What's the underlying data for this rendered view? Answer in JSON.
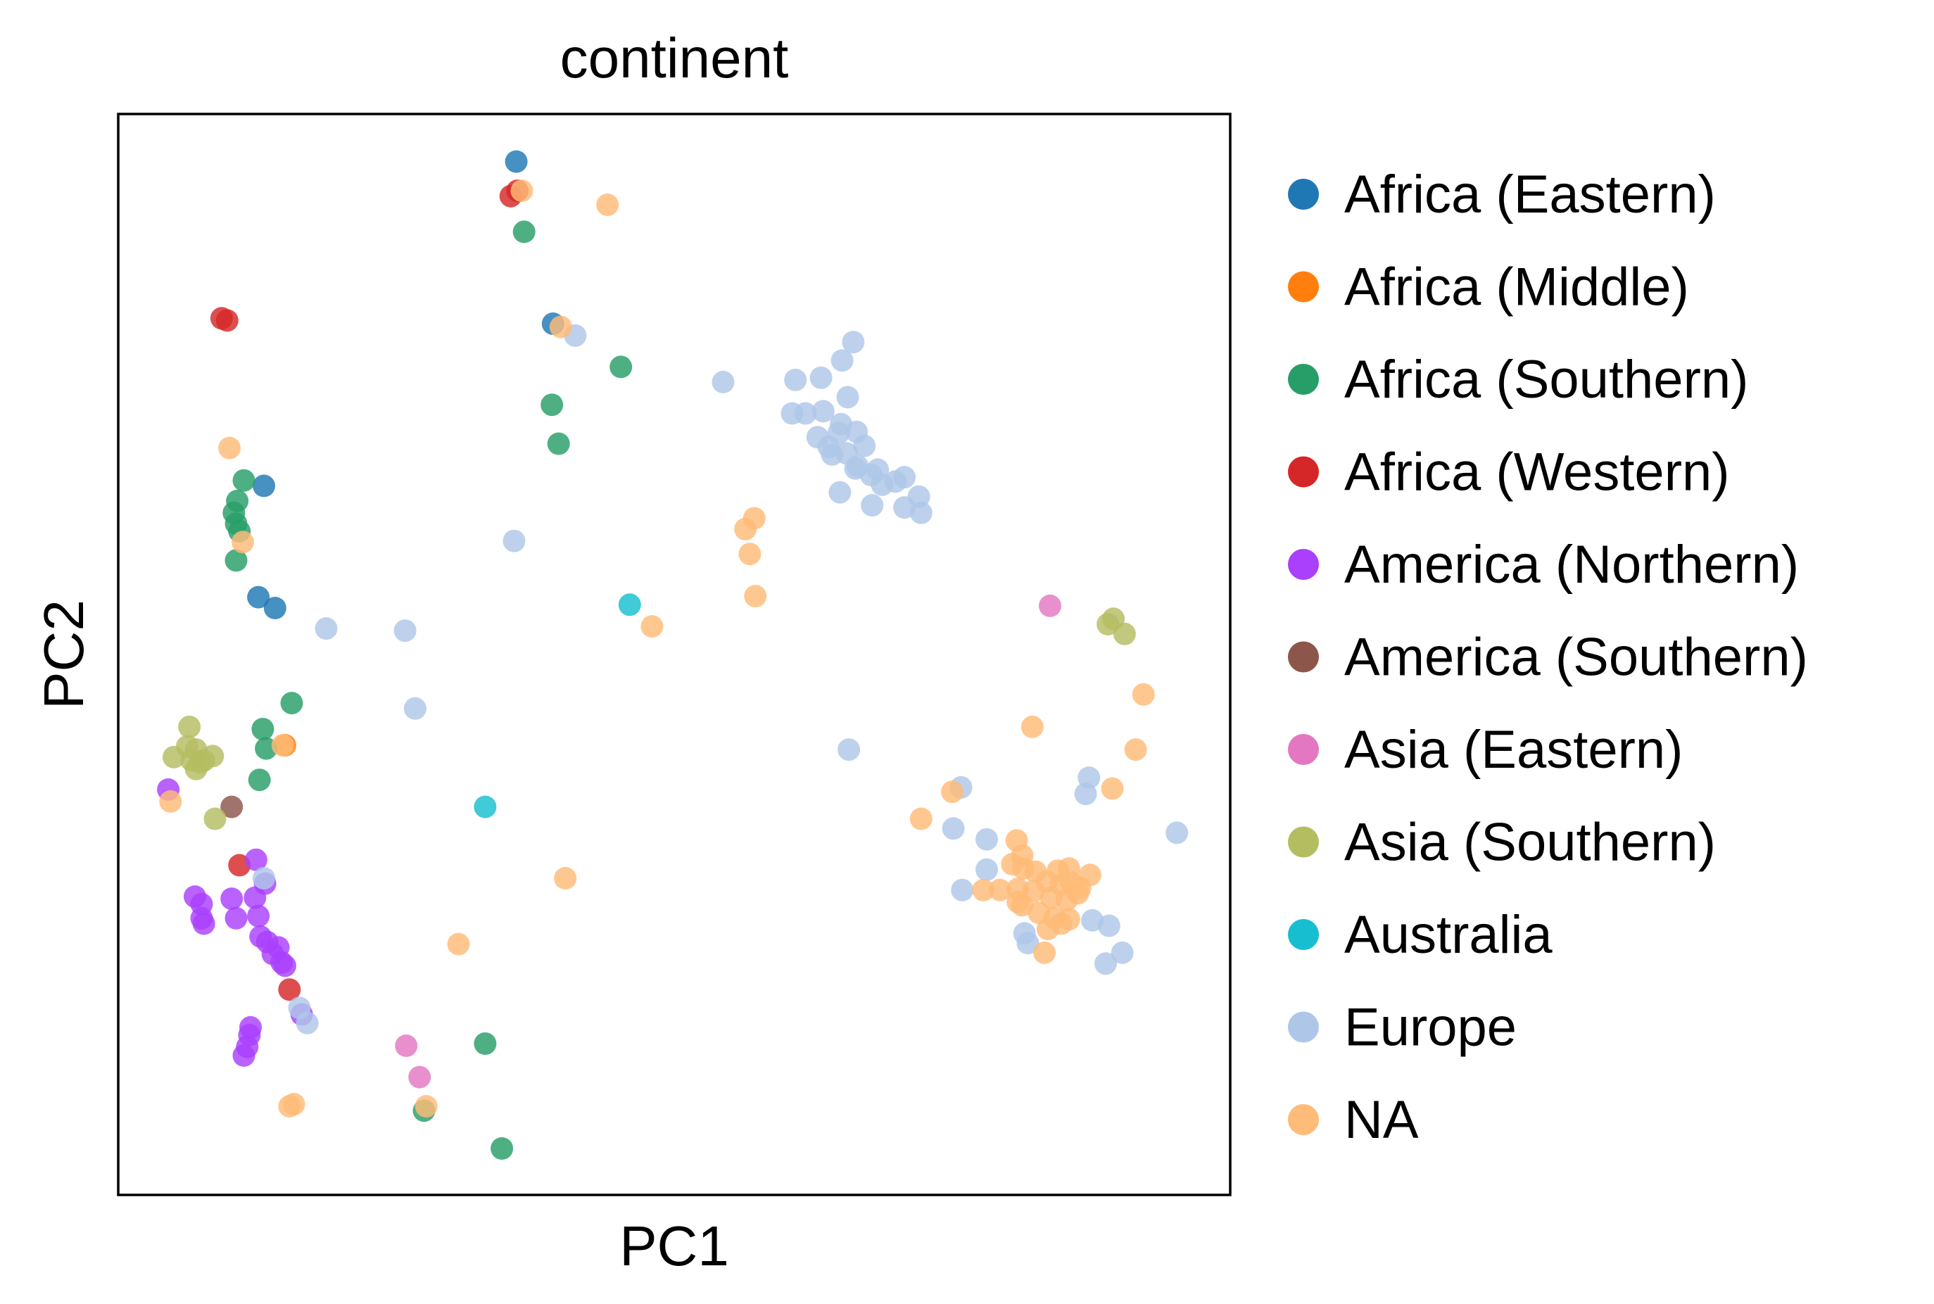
{
  "chart_data": {
    "type": "scatter",
    "title": "continent",
    "xlabel": "PC1",
    "ylabel": "PC2",
    "xlim": [
      0,
      100
    ],
    "ylim": [
      0,
      100
    ],
    "ticks": "none",
    "grid": false,
    "legend_position": "right",
    "series": [
      {
        "name": "Africa (Eastern)",
        "color": "#1f77b4",
        "points": [
          [
            35.8,
            95.6
          ],
          [
            39.1,
            80.6
          ],
          [
            13.1,
            65.6
          ],
          [
            12.6,
            55.3
          ],
          [
            14.1,
            54.3
          ]
        ]
      },
      {
        "name": "Africa (Middle)",
        "color": "#ff7f0e",
        "points": [
          [
            15.0,
            41.6
          ]
        ]
      },
      {
        "name": "Africa (Southern)",
        "color": "#279e68",
        "points": [
          [
            36.5,
            89.1
          ],
          [
            45.2,
            76.6
          ],
          [
            39.0,
            73.1
          ],
          [
            39.6,
            69.5
          ],
          [
            11.3,
            66.1
          ],
          [
            10.7,
            64.2
          ],
          [
            10.4,
            63.1
          ],
          [
            10.6,
            62.1
          ],
          [
            10.9,
            61.4
          ],
          [
            10.6,
            58.7
          ],
          [
            15.6,
            45.5
          ],
          [
            13.0,
            43.1
          ],
          [
            13.3,
            41.3
          ],
          [
            12.7,
            38.4
          ],
          [
            33.0,
            14.0
          ],
          [
            27.5,
            7.8
          ],
          [
            34.5,
            4.3
          ]
        ]
      },
      {
        "name": "Africa (Western)",
        "color": "#d62728",
        "points": [
          [
            35.9,
            92.9
          ],
          [
            35.3,
            92.4
          ],
          [
            9.3,
            81.1
          ],
          [
            9.8,
            80.9
          ],
          [
            10.9,
            30.5
          ],
          [
            15.4,
            19.0
          ]
        ]
      },
      {
        "name": "America (Northern)",
        "color": "#aa40fc",
        "points": [
          [
            4.5,
            37.5
          ],
          [
            6.9,
            27.6
          ],
          [
            7.5,
            26.9
          ],
          [
            7.5,
            25.6
          ],
          [
            7.7,
            25.1
          ],
          [
            10.2,
            27.4
          ],
          [
            10.6,
            25.6
          ],
          [
            12.3,
            27.5
          ],
          [
            12.6,
            25.8
          ],
          [
            12.8,
            23.9
          ],
          [
            13.4,
            23.4
          ],
          [
            14.4,
            22.9
          ],
          [
            13.9,
            22.3
          ],
          [
            14.7,
            21.5
          ],
          [
            15.0,
            21.2
          ],
          [
            13.2,
            28.8
          ],
          [
            12.4,
            31.0
          ],
          [
            16.5,
            16.7
          ],
          [
            11.9,
            15.5
          ],
          [
            11.8,
            14.8
          ],
          [
            11.6,
            13.7
          ],
          [
            11.3,
            12.9
          ]
        ]
      },
      {
        "name": "America (Southern)",
        "color": "#8c564b",
        "points": [
          [
            10.2,
            35.9
          ]
        ]
      },
      {
        "name": "Asia (Eastern)",
        "color": "#e377c2",
        "points": [
          [
            83.8,
            54.5
          ],
          [
            25.9,
            13.8
          ],
          [
            27.1,
            10.9
          ]
        ]
      },
      {
        "name": "Asia (Southern)",
        "color": "#b5bd61",
        "points": [
          [
            89.5,
            53.3
          ],
          [
            89.0,
            52.8
          ],
          [
            90.5,
            51.9
          ],
          [
            6.4,
            43.3
          ],
          [
            6.2,
            41.5
          ],
          [
            7.0,
            41.2
          ],
          [
            5.0,
            40.5
          ],
          [
            6.6,
            40.2
          ],
          [
            7.4,
            40.0
          ],
          [
            7.7,
            40.2
          ],
          [
            8.5,
            40.6
          ],
          [
            7.0,
            39.4
          ],
          [
            8.7,
            34.8
          ]
        ]
      },
      {
        "name": "Australia",
        "color": "#17becf",
        "points": [
          [
            46.0,
            54.6
          ],
          [
            33.0,
            35.9
          ]
        ]
      },
      {
        "name": "Europe",
        "color": "#aec7e8",
        "points": [
          [
            66.1,
            78.9
          ],
          [
            65.1,
            77.2
          ],
          [
            63.2,
            75.6
          ],
          [
            60.9,
            75.4
          ],
          [
            65.6,
            73.8
          ],
          [
            63.4,
            72.5
          ],
          [
            61.8,
            72.3
          ],
          [
            60.6,
            72.3
          ],
          [
            65.0,
            71.3
          ],
          [
            66.4,
            70.6
          ],
          [
            64.8,
            70.5
          ],
          [
            62.9,
            70.1
          ],
          [
            63.9,
            69.2
          ],
          [
            67.1,
            69.3
          ],
          [
            64.2,
            68.5
          ],
          [
            65.5,
            68.6
          ],
          [
            68.3,
            67.1
          ],
          [
            66.5,
            67.4
          ],
          [
            66.3,
            67.2
          ],
          [
            70.7,
            66.4
          ],
          [
            69.9,
            66.0
          ],
          [
            67.7,
            66.6
          ],
          [
            68.7,
            65.7
          ],
          [
            72.0,
            64.6
          ],
          [
            64.9,
            65.0
          ],
          [
            67.8,
            63.8
          ],
          [
            70.7,
            63.6
          ],
          [
            72.2,
            63.1
          ],
          [
            54.4,
            75.2
          ],
          [
            41.1,
            79.5
          ],
          [
            35.6,
            60.5
          ],
          [
            18.7,
            52.4
          ],
          [
            25.8,
            52.2
          ],
          [
            26.7,
            45.0
          ],
          [
            65.7,
            41.2
          ],
          [
            75.8,
            37.7
          ],
          [
            87.3,
            38.6
          ],
          [
            87.0,
            37.1
          ],
          [
            75.1,
            33.9
          ],
          [
            95.2,
            33.5
          ],
          [
            78.1,
            32.9
          ],
          [
            78.1,
            30.1
          ],
          [
            75.9,
            28.2
          ],
          [
            87.6,
            25.4
          ],
          [
            89.1,
            24.9
          ],
          [
            81.5,
            24.2
          ],
          [
            81.8,
            23.3
          ],
          [
            90.3,
            22.4
          ],
          [
            88.8,
            21.4
          ],
          [
            13.1,
            29.3
          ],
          [
            16.3,
            17.3
          ],
          [
            17.0,
            15.9
          ]
        ]
      },
      {
        "name": "NA",
        "color": "#ffbb78",
        "points": [
          [
            36.3,
            92.9
          ],
          [
            44.0,
            91.6
          ],
          [
            39.8,
            80.3
          ],
          [
            10.0,
            69.1
          ],
          [
            11.2,
            60.4
          ],
          [
            57.2,
            62.6
          ],
          [
            56.4,
            61.6
          ],
          [
            56.8,
            59.3
          ],
          [
            57.3,
            55.4
          ],
          [
            48.0,
            52.6
          ],
          [
            92.2,
            46.3
          ],
          [
            82.2,
            43.3
          ],
          [
            91.5,
            41.2
          ],
          [
            89.4,
            37.6
          ],
          [
            75.0,
            37.3
          ],
          [
            72.2,
            34.8
          ],
          [
            14.8,
            41.6
          ],
          [
            4.7,
            36.4
          ],
          [
            80.8,
            32.8
          ],
          [
            81.3,
            31.4
          ],
          [
            80.4,
            30.6
          ],
          [
            81.4,
            30.2
          ],
          [
            82.5,
            29.9
          ],
          [
            84.5,
            30.0
          ],
          [
            85.5,
            30.2
          ],
          [
            87.4,
            29.6
          ],
          [
            83.5,
            29.0
          ],
          [
            84.8,
            28.7
          ],
          [
            85.7,
            28.9
          ],
          [
            86.5,
            28.4
          ],
          [
            79.3,
            28.2
          ],
          [
            80.9,
            28.3
          ],
          [
            82.3,
            28.1
          ],
          [
            83.9,
            27.5
          ],
          [
            85.3,
            27.3
          ],
          [
            86.3,
            27.9
          ],
          [
            81.3,
            26.8
          ],
          [
            82.8,
            26.1
          ],
          [
            84.2,
            25.6
          ],
          [
            85.5,
            25.5
          ],
          [
            83.6,
            24.6
          ],
          [
            84.8,
            25.1
          ],
          [
            80.9,
            27.1
          ],
          [
            83.3,
            22.4
          ],
          [
            77.8,
            28.2
          ],
          [
            40.2,
            29.3
          ],
          [
            30.6,
            23.2
          ],
          [
            15.4,
            8.2
          ],
          [
            15.8,
            8.4
          ],
          [
            27.7,
            8.2
          ]
        ]
      }
    ]
  }
}
